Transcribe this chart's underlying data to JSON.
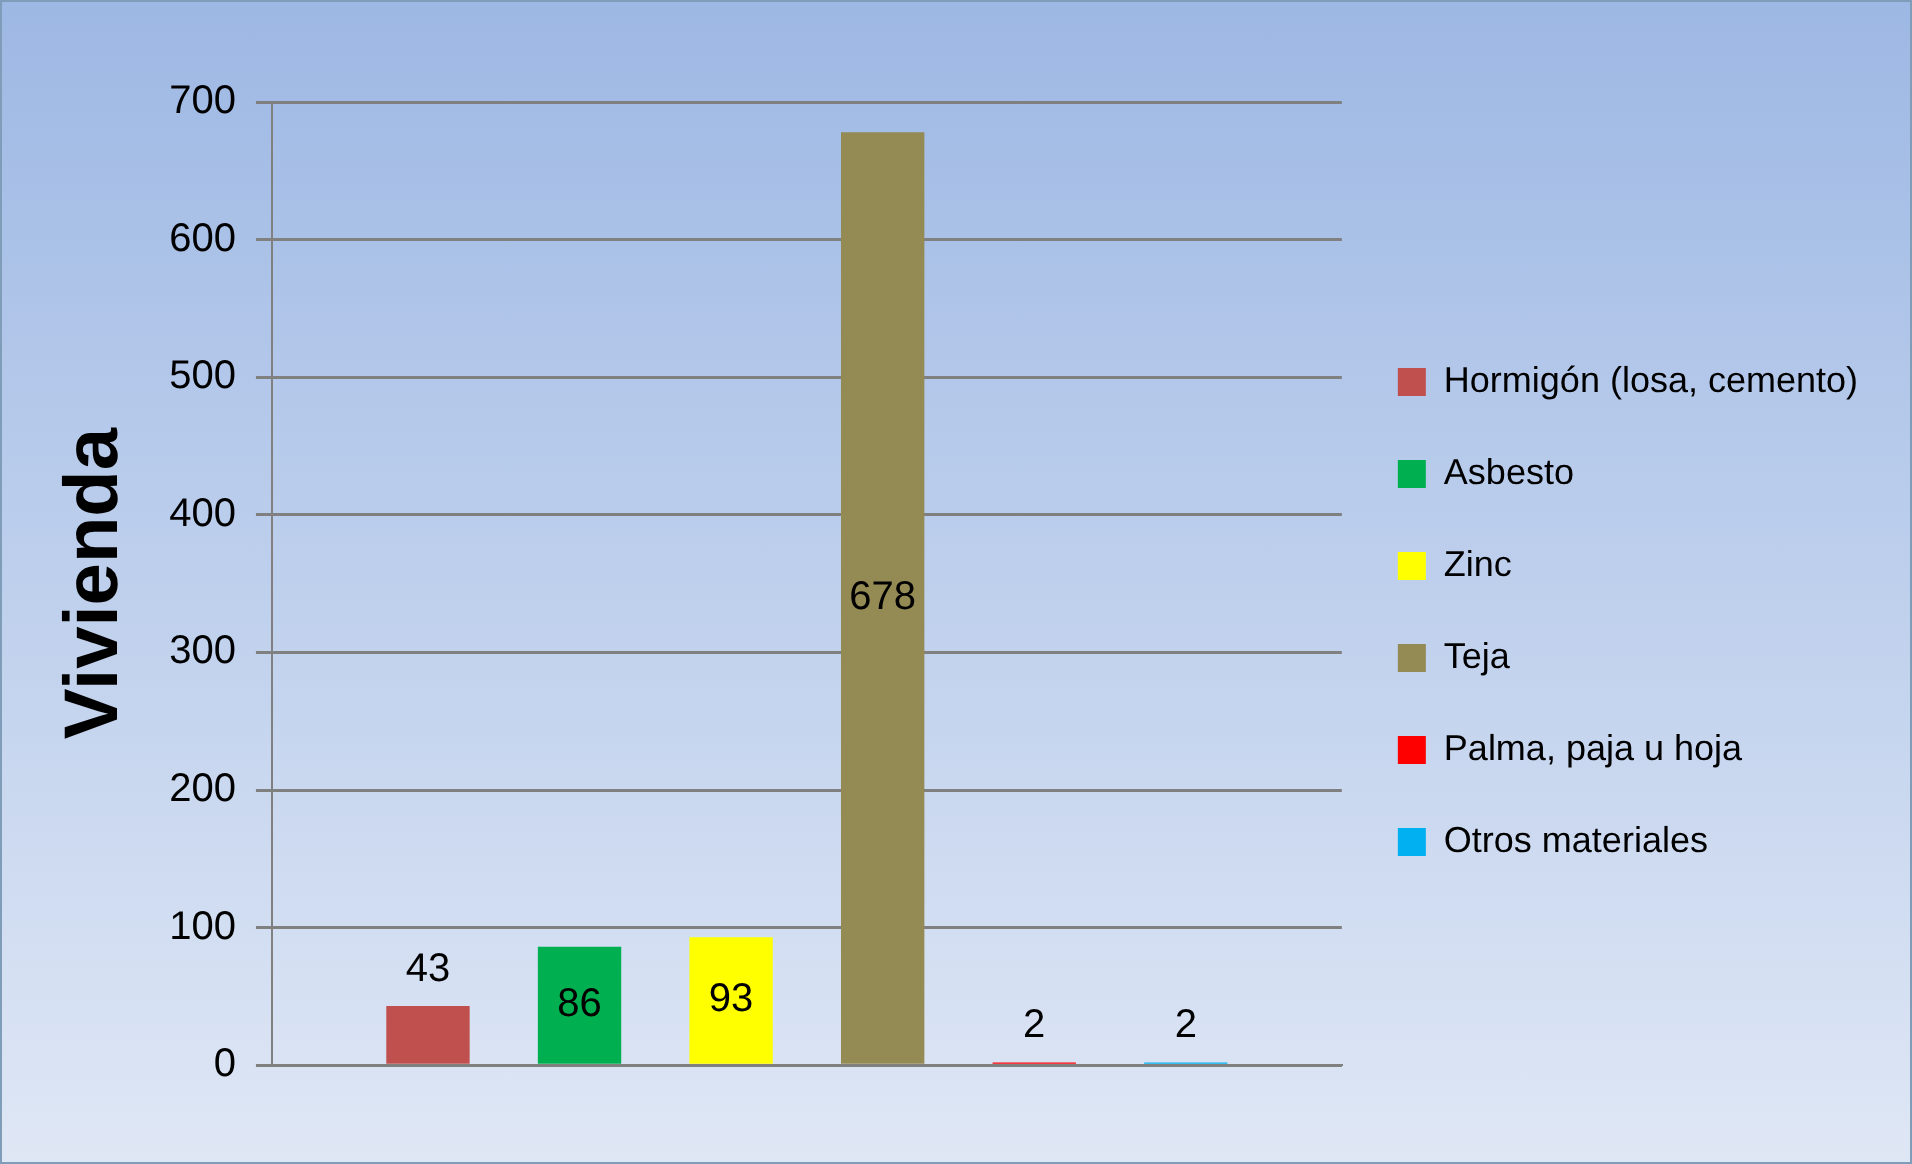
{
  "chart_data": {
    "type": "bar",
    "ylabel": "Vivienda",
    "categories": [
      null
    ],
    "series": [
      {
        "name": "Hormigón (losa, cemento)",
        "color": "#c0504d",
        "values": [
          43
        ]
      },
      {
        "name": "Asbesto",
        "color": "#00b050",
        "values": [
          86
        ]
      },
      {
        "name": "Zinc",
        "color": "#ffff00",
        "values": [
          93
        ]
      },
      {
        "name": "Teja",
        "color": "#948a54",
        "values": [
          678
        ]
      },
      {
        "name": "Palma, paja u hoja",
        "color": "#ff0000",
        "values": [
          2
        ]
      },
      {
        "name": "Otros materiales",
        "color": "#00b0f0",
        "values": [
          2
        ]
      }
    ],
    "ylim": [
      0,
      700
    ],
    "yticks": [
      0,
      100,
      200,
      300,
      400,
      500,
      600,
      700
    ],
    "grid": "y",
    "legend": "right",
    "data_labels": true
  }
}
